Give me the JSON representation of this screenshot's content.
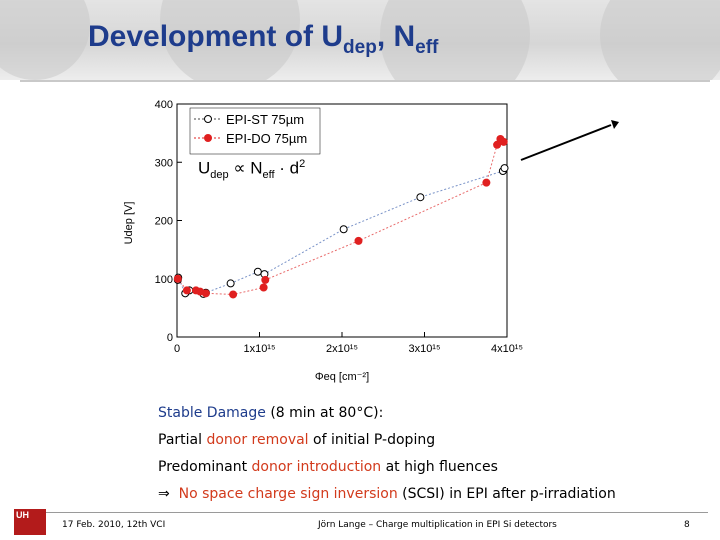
{
  "slide": {
    "title": "Development of U",
    "title_sub1": "dep",
    "title_mid": ", N",
    "title_sub2": "eff"
  },
  "formula": {
    "u": "U",
    "u_sub": "dep",
    "prop": " ∝ N",
    "n_sub": "eff",
    "rest": " · d",
    "sup": "2"
  },
  "text": {
    "line1_a": "Stable Damage",
    "line1_b": " (8 min at 80°C):",
    "line2_a": "Partial ",
    "line2_red": "donor removal",
    "line2_b": " of initial P-doping",
    "line3_a": "Predominant ",
    "line3_red": "donor introduction",
    "line3_b": " at high fluences",
    "line4_arrow": "⇒",
    "line4_red": "No space charge sign inversion",
    "line4_b": " (SCSI) in EPI after p-irradiation"
  },
  "footer": {
    "logo": "UH",
    "date": "17 Feb. 2010, 12th VCI",
    "author": "Jörn Lange – Charge multiplication in EPI Si detectors",
    "page": "8"
  },
  "chart_data": {
    "type": "scatter",
    "xlabel": "Φeq [cm⁻²]",
    "ylabel": "Udep [V]",
    "xlim": [
      0,
      4000000000000000.0
    ],
    "ylim": [
      0,
      400
    ],
    "xticks": [
      "0",
      "1x10¹⁵",
      "2x10¹⁵",
      "3x10¹⁵",
      "4x10¹⁵"
    ],
    "yticks": [
      "0",
      "100",
      "200",
      "300",
      "400"
    ],
    "legend_position": "top-left",
    "colors": {
      "st": "#000000",
      "do": "#e02020",
      "st_line": "#7a93c8",
      "do_line": "#e86a6a"
    },
    "series": [
      {
        "name": "EPI-ST 75µm",
        "x": [
          10000000000000.0,
          15000000000000.0,
          100000000000000.0,
          150000000000000.0,
          320000000000000.0,
          350000000000000.0,
          650000000000000.0,
          980000000000000.0,
          1060000000000000.0,
          2020000000000000.0,
          2950000000000000.0,
          3950000000000000.0,
          3970000000000000.0
        ],
        "y": [
          98,
          102,
          75,
          80,
          74,
          76,
          92,
          112,
          108,
          185,
          240,
          285,
          290
        ]
      },
      {
        "name": "EPI-DO 75µm",
        "x": [
          10000000000000.0,
          120000000000000.0,
          230000000000000.0,
          280000000000000.0,
          350000000000000.0,
          680000000000000.0,
          1050000000000000.0,
          1070000000000000.0,
          2200000000000000.0,
          3750000000000000.0,
          3880000000000000.0,
          3920000000000000.0,
          3960000000000000.0
        ],
        "y": [
          100,
          80,
          80,
          78,
          75,
          73,
          85,
          98,
          165,
          265,
          330,
          340,
          335
        ]
      }
    ]
  }
}
